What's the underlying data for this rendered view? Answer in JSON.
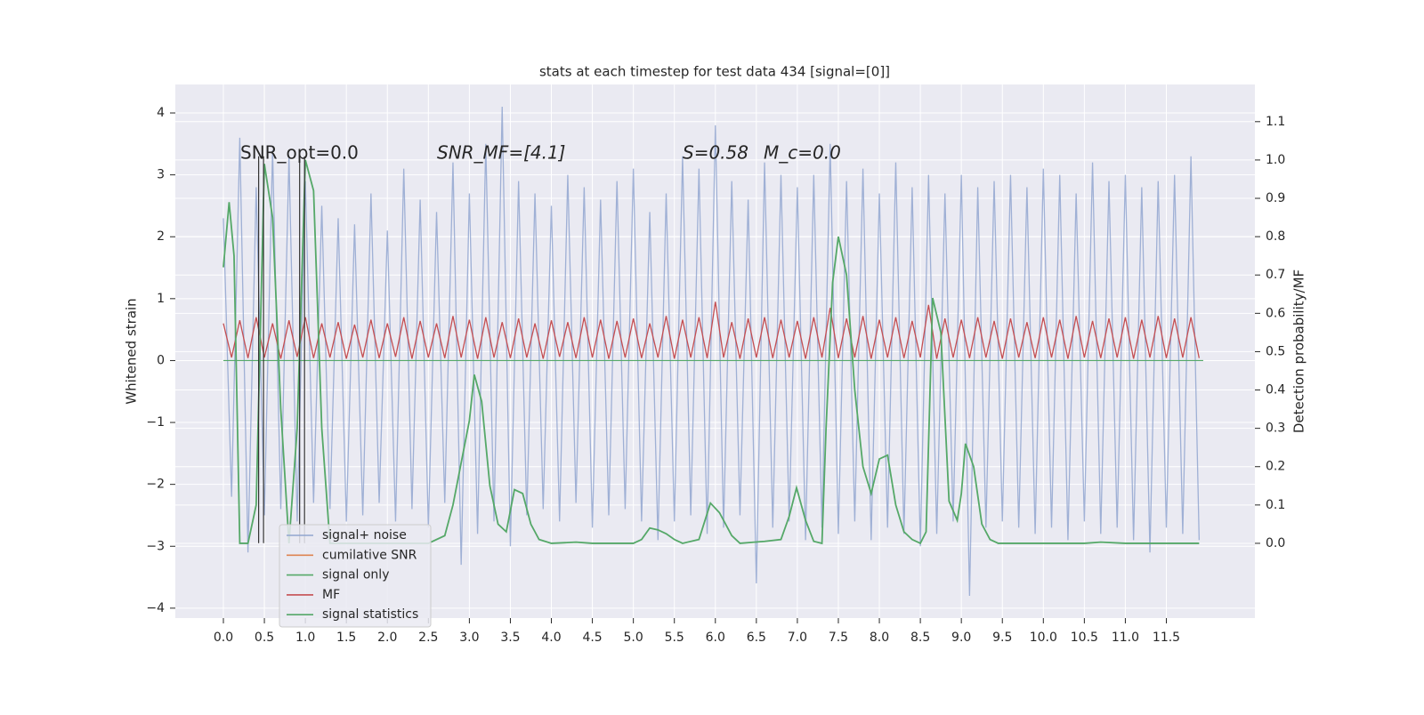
{
  "chart_data": {
    "type": "line",
    "title": "stats at each timestep for test data 434 [signal=[0]]",
    "ylabel": "Whitened strain",
    "y2label": "Detection probability/MF",
    "annotations": [
      "SNR_opt=0.0",
      "SNR_MF=[4.1]",
      "S=0.58",
      "M_c=0.0"
    ],
    "xlim": [
      -0.586,
      12.58
    ],
    "ylim": [
      -4.16,
      4.46
    ],
    "y2lim": [
      -0.195,
      1.197
    ],
    "grid": true,
    "legend": "lower left",
    "xticks": [
      {
        "value": 0,
        "label": "0.0"
      },
      {
        "value": 0.5,
        "label": "0.5"
      },
      {
        "value": 1,
        "label": "1.0"
      },
      {
        "value": 1.5,
        "label": "1.5"
      },
      {
        "value": 2,
        "label": "2.0"
      },
      {
        "value": 2.5,
        "label": "2.5"
      },
      {
        "value": 3,
        "label": "3.0"
      },
      {
        "value": 3.5,
        "label": "3.5"
      },
      {
        "value": 4,
        "label": "4.0"
      },
      {
        "value": 4.5,
        "label": "4.5"
      },
      {
        "value": 5,
        "label": "5.0"
      },
      {
        "value": 5.5,
        "label": "5.5"
      },
      {
        "value": 6,
        "label": "6.0"
      },
      {
        "value": 6.5,
        "label": "6.5"
      },
      {
        "value": 7,
        "label": "7.0"
      },
      {
        "value": 7.5,
        "label": "7.5"
      },
      {
        "value": 8,
        "label": "8.0"
      },
      {
        "value": 8.5,
        "label": "8.5"
      },
      {
        "value": 9,
        "label": "9.0"
      },
      {
        "value": 9.5,
        "label": "9.5"
      },
      {
        "value": 10,
        "label": "10.0"
      },
      {
        "value": 10.5,
        "label": "10.5"
      },
      {
        "value": 11,
        "label": "11.0"
      },
      {
        "value": 11.5,
        "label": "11.5"
      }
    ],
    "yticks": [
      {
        "value": -4,
        "label": "−4"
      },
      {
        "value": -3,
        "label": "−3"
      },
      {
        "value": -2,
        "label": "−2"
      },
      {
        "value": -1,
        "label": "−1"
      },
      0,
      1,
      2,
      3,
      4
    ],
    "y2ticks": [
      {
        "value": 0,
        "label": "0.0"
      },
      {
        "value": 0.1,
        "label": "0.1"
      },
      {
        "value": 0.2,
        "label": "0.2"
      },
      {
        "value": 0.3,
        "label": "0.3"
      },
      {
        "value": 0.4,
        "label": "0.4"
      },
      {
        "value": 0.5,
        "label": "0.5"
      },
      {
        "value": 0.6,
        "label": "0.6"
      },
      {
        "value": 0.7,
        "label": "0.7"
      },
      {
        "value": 0.8,
        "label": "0.8"
      },
      {
        "value": 0.9,
        "label": "0.9"
      },
      {
        "value": 1,
        "label": "1.0"
      },
      {
        "value": 1.1,
        "label": "1.1"
      }
    ],
    "vlines": {
      "x": [
        0.43,
        0.49,
        0.93,
        0.99
      ],
      "ymin": -2.95,
      "ymax": 3.3,
      "color": "#333333"
    },
    "series": [
      {
        "name": "signal+ noise",
        "color": "#92a6d0",
        "axis": "y",
        "x": [
          0,
          0.1,
          0.2,
          0.3,
          0.4,
          0.5,
          0.6,
          0.7,
          0.8,
          0.9,
          1,
          1.1,
          1.2,
          1.3,
          1.4,
          1.5,
          1.6,
          1.7,
          1.8,
          1.9,
          2,
          2.1,
          2.2,
          2.3,
          2.4,
          2.5,
          2.6,
          2.7,
          2.8,
          2.9,
          3,
          3.1,
          3.2,
          3.3,
          3.4,
          3.5,
          3.6,
          3.7,
          3.8,
          3.9,
          4,
          4.1,
          4.2,
          4.3,
          4.4,
          4.5,
          4.6,
          4.7,
          4.8,
          4.9,
          5,
          5.1,
          5.2,
          5.3,
          5.4,
          5.5,
          5.6,
          5.7,
          5.8,
          5.9,
          6,
          6.1,
          6.2,
          6.3,
          6.4,
          6.5,
          6.6,
          6.7,
          6.8,
          6.9,
          7,
          7.1,
          7.2,
          7.3,
          7.4,
          7.5,
          7.6,
          7.7,
          7.8,
          7.9,
          8,
          8.1,
          8.2,
          8.3,
          8.4,
          8.5,
          8.6,
          8.7,
          8.8,
          8.9,
          9,
          9.1,
          9.2,
          9.3,
          9.4,
          9.5,
          9.6,
          9.7,
          9.8,
          9.9,
          10,
          10.1,
          10.2,
          10.3,
          10.4,
          10.5,
          10.6,
          10.7,
          10.8,
          10.9,
          11,
          11.1,
          11.2,
          11.3,
          11.4,
          11.5,
          11.6,
          11.7,
          11.8,
          11.9
        ],
        "values": [
          2.3,
          -2.2,
          3.6,
          -3.1,
          2.8,
          -2.5,
          3.4,
          -2.4,
          3.3,
          -2.6,
          2.9,
          -2.3,
          2.5,
          -2.4,
          2.3,
          -2.6,
          2.2,
          -2.5,
          2.7,
          -2.3,
          2.1,
          -2.6,
          3.1,
          -2.4,
          2.6,
          -2.7,
          2.4,
          -2.3,
          3.2,
          -3.3,
          2.7,
          -2.8,
          3.5,
          -2.6,
          4.1,
          -3.0,
          2.9,
          -2.5,
          2.7,
          -2.4,
          2.5,
          -2.6,
          3.0,
          -2.3,
          2.8,
          -2.7,
          2.6,
          -2.5,
          2.9,
          -2.4,
          3.1,
          -2.6,
          2.4,
          -2.9,
          2.7,
          -2.6,
          3.3,
          -2.5,
          3.1,
          -2.8,
          3.8,
          -2.7,
          2.9,
          -2.5,
          2.6,
          -3.6,
          3.2,
          -2.7,
          3.0,
          -2.6,
          2.8,
          -2.9,
          3.0,
          -2.7,
          3.5,
          -2.8,
          2.9,
          -2.6,
          3.1,
          -2.9,
          2.7,
          -2.7,
          3.2,
          -2.8,
          2.8,
          -3.0,
          3.0,
          -2.8,
          2.7,
          -2.6,
          3.0,
          -3.8,
          2.8,
          -2.7,
          2.9,
          -2.6,
          3.0,
          -2.7,
          2.8,
          -2.8,
          3.1,
          -2.7,
          3.0,
          -2.9,
          2.7,
          -2.6,
          3.2,
          -2.8,
          2.9,
          -2.7,
          3.0,
          -2.9,
          2.8,
          -3.1,
          2.9,
          -2.7,
          3.0,
          -2.8,
          3.3,
          -2.9
        ]
      },
      {
        "name": "cumilative SNR",
        "color": "#dd8452",
        "axis": "y"
      },
      {
        "name": "signal only",
        "color": "#55a868",
        "axis": "y",
        "x": [
          0,
          11.95
        ],
        "values": [
          0,
          0
        ]
      },
      {
        "name": "MF",
        "color": "#c44e52",
        "axis": "y",
        "x": [
          0,
          0.1,
          0.2,
          0.3,
          0.4,
          0.5,
          0.6,
          0.7,
          0.8,
          0.9,
          1,
          1.1,
          1.2,
          1.3,
          1.4,
          1.5,
          1.6,
          1.7,
          1.8,
          1.9,
          2,
          2.1,
          2.2,
          2.3,
          2.4,
          2.5,
          2.6,
          2.7,
          2.8,
          2.9,
          3,
          3.1,
          3.2,
          3.3,
          3.4,
          3.5,
          3.6,
          3.7,
          3.8,
          3.9,
          4,
          4.1,
          4.2,
          4.3,
          4.4,
          4.5,
          4.6,
          4.7,
          4.8,
          4.9,
          5,
          5.1,
          5.2,
          5.3,
          5.4,
          5.5,
          5.6,
          5.7,
          5.8,
          5.9,
          6,
          6.1,
          6.2,
          6.3,
          6.4,
          6.5,
          6.6,
          6.7,
          6.8,
          6.9,
          7,
          7.1,
          7.2,
          7.3,
          7.4,
          7.5,
          7.6,
          7.7,
          7.8,
          7.9,
          8,
          8.1,
          8.2,
          8.3,
          8.4,
          8.5,
          8.6,
          8.7,
          8.8,
          8.9,
          9,
          9.1,
          9.2,
          9.3,
          9.4,
          9.5,
          9.6,
          9.7,
          9.8,
          9.9,
          10,
          10.1,
          10.2,
          10.3,
          10.4,
          10.5,
          10.6,
          10.7,
          10.8,
          10.9,
          11,
          11.1,
          11.2,
          11.3,
          11.4,
          11.5,
          11.6,
          11.7,
          11.8,
          11.9
        ],
        "values": [
          0.6,
          0.05,
          0.65,
          0.04,
          0.7,
          0.05,
          0.6,
          0.03,
          0.65,
          0.06,
          0.7,
          0.04,
          0.6,
          0.05,
          0.62,
          0.03,
          0.58,
          0.05,
          0.66,
          0.04,
          0.6,
          0.06,
          0.7,
          0.03,
          0.64,
          0.05,
          0.6,
          0.04,
          0.72,
          0.05,
          0.66,
          0.03,
          0.7,
          0.05,
          0.62,
          0.04,
          0.68,
          0.05,
          0.6,
          0.03,
          0.65,
          0.06,
          0.62,
          0.04,
          0.7,
          0.05,
          0.66,
          0.03,
          0.64,
          0.05,
          0.68,
          0.04,
          0.6,
          0.05,
          0.72,
          0.03,
          0.66,
          0.05,
          0.7,
          0.04,
          0.95,
          0.05,
          0.62,
          0.03,
          0.68,
          0.05,
          0.7,
          0.04,
          0.66,
          0.05,
          0.64,
          0.03,
          0.7,
          0.05,
          0.85,
          0.04,
          0.68,
          0.05,
          0.72,
          0.03,
          0.66,
          0.05,
          0.7,
          0.04,
          0.64,
          0.05,
          0.9,
          0.03,
          0.68,
          0.05,
          0.66,
          0.04,
          0.7,
          0.05,
          0.64,
          0.03,
          0.68,
          0.05,
          0.62,
          0.04,
          0.7,
          0.05,
          0.66,
          0.03,
          0.72,
          0.05,
          0.64,
          0.04,
          0.68,
          0.05,
          0.7,
          0.03,
          0.66,
          0.05,
          0.72,
          0.04,
          0.68,
          0.05,
          0.7,
          0.04
        ]
      },
      {
        "name": "signal statistics",
        "color": "#55a868",
        "axis": "y2",
        "x": [
          0,
          0.07,
          0.13,
          0.2,
          0.3,
          0.4,
          0.5,
          0.6,
          0.7,
          0.8,
          0.9,
          1,
          1.1,
          1.2,
          1.3,
          1.5,
          2,
          2.5,
          2.7,
          2.8,
          3,
          3.06,
          3.15,
          3.25,
          3.35,
          3.45,
          3.55,
          3.65,
          3.75,
          3.85,
          4,
          4.3,
          4.5,
          5,
          5.1,
          5.2,
          5.3,
          5.4,
          5.5,
          5.6,
          5.8,
          5.94,
          6.05,
          6.2,
          6.3,
          6.6,
          6.8,
          6.9,
          6.99,
          7.1,
          7.2,
          7.3,
          7.35,
          7.43,
          7.5,
          7.6,
          7.7,
          7.8,
          7.9,
          8,
          8.1,
          8.2,
          8.3,
          8.4,
          8.5,
          8.57,
          8.65,
          8.75,
          8.85,
          8.95,
          9,
          9.05,
          9.15,
          9.25,
          9.35,
          9.45,
          9.55,
          9.7,
          10,
          10.5,
          10.7,
          11,
          11.9
        ],
        "values": [
          0.72,
          0.89,
          0.75,
          0.0,
          0.0,
          0.1,
          0.99,
          0.85,
          0.35,
          0.0,
          0.3,
          1.0,
          0.92,
          0.3,
          0.0,
          0.0,
          0.0,
          0.0,
          0.02,
          0.1,
          0.32,
          0.44,
          0.37,
          0.15,
          0.05,
          0.03,
          0.14,
          0.13,
          0.05,
          0.01,
          0.0,
          0.003,
          0.0,
          0.0,
          0.01,
          0.04,
          0.035,
          0.025,
          0.01,
          0.0,
          0.01,
          0.105,
          0.08,
          0.02,
          0.0,
          0.005,
          0.01,
          0.07,
          0.145,
          0.06,
          0.005,
          0.0,
          0.3,
          0.68,
          0.8,
          0.7,
          0.4,
          0.2,
          0.13,
          0.22,
          0.23,
          0.1,
          0.03,
          0.01,
          0.0,
          0.03,
          0.64,
          0.55,
          0.11,
          0.06,
          0.13,
          0.26,
          0.2,
          0.05,
          0.01,
          0.0,
          0.0,
          0.0,
          0.0,
          0.0,
          0.003,
          0.0,
          0.0
        ]
      }
    ]
  }
}
